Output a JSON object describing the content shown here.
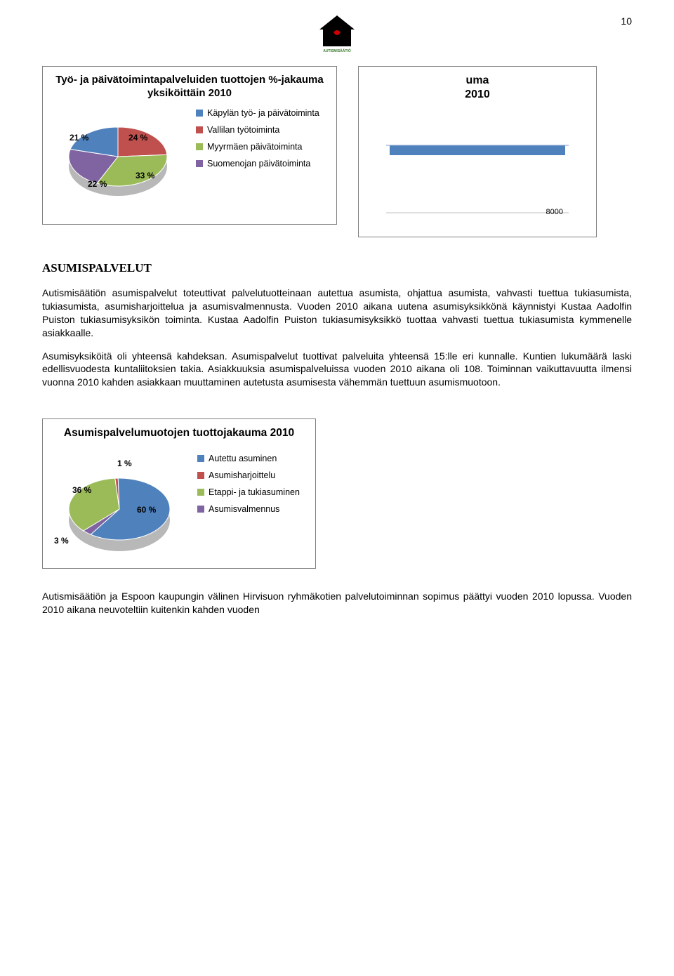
{
  "page_number": "10",
  "chart1": {
    "type": "pie",
    "title": "Työ- ja päivätoimintapalveluiden tuottojen %-jakauma yksiköittäin 2010",
    "slices": [
      {
        "label": "21 %",
        "value": 21,
        "color": "#4f81bd",
        "legend": "Käpylän työ- ja päivätoiminta"
      },
      {
        "label": "24 %",
        "value": 24,
        "color": "#c0504d",
        "legend": "Vallilan työtoiminta"
      },
      {
        "label": "33 %",
        "value": 33,
        "color": "#9bbb59",
        "legend": "Myyrmäen päivätoiminta"
      },
      {
        "label": "22 %",
        "value": 22,
        "color": "#8064a2",
        "legend": "Suomenojan päivätoiminta"
      }
    ],
    "label_font_size": 12,
    "legend_font_size": 12
  },
  "chart2": {
    "type": "bar",
    "title_line1": "uma",
    "title_line2": "2010",
    "value": 8000,
    "bar_color": "#4f81bd",
    "tick_label": "8000",
    "label_font_size": 11
  },
  "section_heading": "ASUMISPALVELUT",
  "paragraph1": "Autismisäätiön asumispalvelut toteuttivat palvelutuotteinaan autettua asumista, ohjattua asumista, vahvasti tuettua tukiasumista, tukiasumista, asumisharjoittelua ja asumisvalmennusta. Vuoden 2010 aikana uutena asumisyksikkönä käynnistyi Kustaa Aadolfin Puiston tukiasumisyksikön toiminta. Kustaa Aadolfin Puiston tukiasumisyksikkö tuottaa vahvasti tuettua tukiasumista kymmenelle asiakkaalle.",
  "paragraph2": "Asumisyksiköitä oli yhteensä kahdeksan. Asumispalvelut tuottivat palveluita yhteensä 15:lle eri kunnalle. Kuntien lukumäärä laski edellisvuodesta kuntaliitoksien takia. Asiakkuuksia asumispalveluissa vuoden 2010 aikana oli 108. Toiminnan vaikuttavuutta ilmensi vuonna 2010 kahden asiakkaan muuttaminen autetusta asumisesta vähemmän tuettuun asumismuotoon.",
  "chart3": {
    "type": "pie",
    "title": "Asumispalvelumuotojen tuottojakauma 2010",
    "slices": [
      {
        "label": "60 %",
        "value": 60,
        "color": "#4f81bd",
        "legend": "Autettu asuminen"
      },
      {
        "label": "1 %",
        "value": 1,
        "color": "#c0504d",
        "legend": "Asumisharjoittelu"
      },
      {
        "label": "36 %",
        "value": 36,
        "color": "#9bbb59",
        "legend": "Etappi- ja tukiasuminen"
      },
      {
        "label": "3 %",
        "value": 3,
        "color": "#8064a2",
        "legend": "Asumisvalmennus"
      }
    ],
    "label_font_size": 12,
    "legend_font_size": 12
  },
  "footer_paragraph": "Autismisäätiön ja Espoon kaupungin välinen Hirvisuon ryhmäkotien palvelutoiminnan sopimus päättyi vuoden 2010 lopussa. Vuoden 2010 aikana neuvoteltiin kuitenkin kahden vuoden"
}
